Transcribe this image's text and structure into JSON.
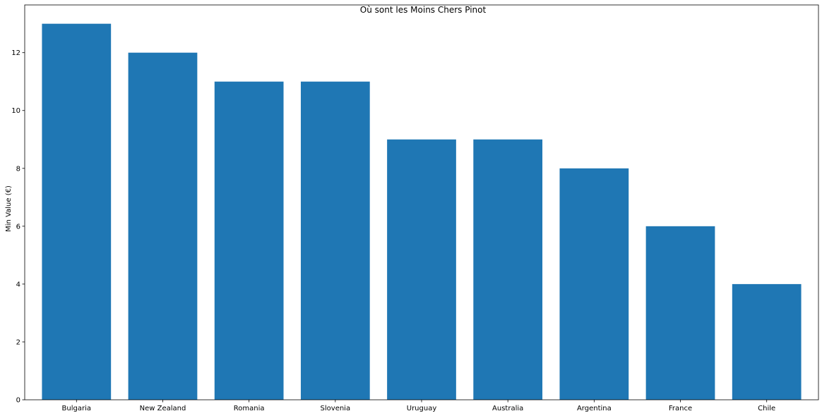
{
  "chart_data": {
    "type": "bar",
    "title": "Où sont les Moins Chers Pinot",
    "xlabel": "",
    "ylabel": "Min Value (€)",
    "categories": [
      "Bulgaria",
      "New Zealand",
      "Romania",
      "Slovenia",
      "Uruguay",
      "Australia",
      "Argentina",
      "France",
      "Chile"
    ],
    "values": [
      13,
      12,
      11,
      11,
      9,
      9,
      8,
      6,
      4
    ],
    "ylim": [
      0,
      13.65
    ],
    "yticks": [
      0,
      2,
      4,
      6,
      8,
      10,
      12
    ],
    "grid": false,
    "bar_color": "#1f77b4"
  }
}
